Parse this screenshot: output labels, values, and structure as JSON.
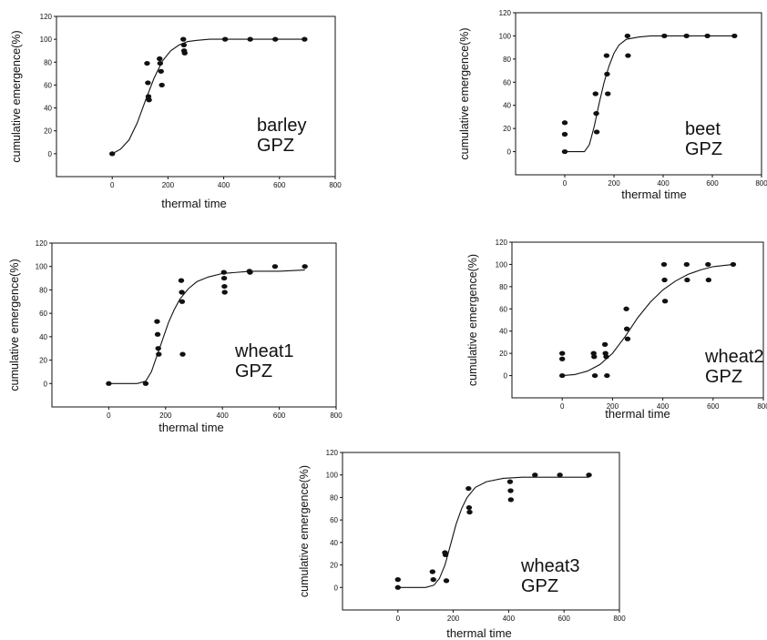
{
  "chart_data": [
    {
      "type": "scatter",
      "annotation": [
        "barley",
        "GPZ"
      ],
      "xlabel": "thermal time",
      "ylabel": "cumulative emergence(%)",
      "xlim": [
        -200,
        800
      ],
      "ylim": [
        -20,
        120
      ],
      "xticks": [
        "0",
        "200",
        "400",
        "600",
        "800"
      ],
      "yticks": [
        "0",
        "20",
        "40",
        "60",
        "80",
        "100",
        "120"
      ],
      "points": [
        [
          0,
          0
        ],
        [
          125,
          79
        ],
        [
          128,
          62
        ],
        [
          130,
          50
        ],
        [
          132,
          47
        ],
        [
          170,
          83
        ],
        [
          172,
          79
        ],
        [
          175,
          72
        ],
        [
          178,
          60
        ],
        [
          255,
          100
        ],
        [
          257,
          95
        ],
        [
          258,
          90
        ],
        [
          260,
          88
        ],
        [
          405,
          100
        ],
        [
          495,
          100
        ],
        [
          585,
          100
        ],
        [
          690,
          100
        ]
      ],
      "fitted_curve": [
        [
          0,
          0
        ],
        [
          30,
          4
        ],
        [
          60,
          12
        ],
        [
          90,
          27
        ],
        [
          120,
          47
        ],
        [
          150,
          66
        ],
        [
          180,
          81
        ],
        [
          210,
          90
        ],
        [
          240,
          95
        ],
        [
          270,
          98
        ],
        [
          300,
          99
        ],
        [
          350,
          100
        ],
        [
          400,
          100
        ],
        [
          500,
          100
        ],
        [
          600,
          100
        ],
        [
          690,
          100
        ]
      ]
    },
    {
      "type": "scatter",
      "annotation": [
        "beet",
        "GPZ"
      ],
      "xlabel": "thermal time",
      "ylabel": "cumulative emergence(%)",
      "xlim": [
        -200,
        800
      ],
      "ylim": [
        -20,
        120
      ],
      "xticks": [
        "0",
        "200",
        "400",
        "600",
        "800"
      ],
      "yticks": [
        "0",
        "20",
        "40",
        "60",
        "80",
        "100",
        "120"
      ],
      "points": [
        [
          0,
          25
        ],
        [
          0,
          15
        ],
        [
          0,
          0
        ],
        [
          125,
          50
        ],
        [
          128,
          33
        ],
        [
          130,
          17
        ],
        [
          170,
          83
        ],
        [
          172,
          67
        ],
        [
          175,
          50
        ],
        [
          255,
          100
        ],
        [
          257,
          83
        ],
        [
          405,
          100
        ],
        [
          495,
          100
        ],
        [
          580,
          100
        ],
        [
          690,
          100
        ]
      ],
      "fitted_curve": [
        [
          0,
          0
        ],
        [
          50,
          0
        ],
        [
          80,
          0
        ],
        [
          100,
          6
        ],
        [
          120,
          22
        ],
        [
          140,
          42
        ],
        [
          160,
          60
        ],
        [
          180,
          74
        ],
        [
          200,
          85
        ],
        [
          220,
          92
        ],
        [
          250,
          97
        ],
        [
          300,
          99
        ],
        [
          350,
          100
        ],
        [
          450,
          100
        ],
        [
          550,
          100
        ],
        [
          690,
          100
        ]
      ]
    },
    {
      "type": "scatter",
      "annotation": [
        "wheat1",
        "GPZ"
      ],
      "xlabel": "thermal time",
      "ylabel": "cumulative emergence(%)",
      "xlim": [
        -200,
        800
      ],
      "ylim": [
        -20,
        120
      ],
      "xticks": [
        "0",
        "200",
        "400",
        "600",
        "800"
      ],
      "yticks": [
        "0",
        "20",
        "40",
        "60",
        "80",
        "100",
        "120"
      ],
      "points": [
        [
          0,
          0
        ],
        [
          130,
          0
        ],
        [
          170,
          53
        ],
        [
          172,
          42
        ],
        [
          174,
          30
        ],
        [
          176,
          25
        ],
        [
          255,
          88
        ],
        [
          257,
          78
        ],
        [
          258,
          70
        ],
        [
          260,
          25
        ],
        [
          405,
          95
        ],
        [
          406,
          90
        ],
        [
          407,
          83
        ],
        [
          408,
          78
        ],
        [
          495,
          96
        ],
        [
          497,
          95
        ],
        [
          585,
          100
        ],
        [
          690,
          100
        ]
      ],
      "fitted_curve": [
        [
          0,
          0
        ],
        [
          100,
          0
        ],
        [
          130,
          2
        ],
        [
          150,
          10
        ],
        [
          170,
          24
        ],
        [
          190,
          38
        ],
        [
          210,
          52
        ],
        [
          230,
          63
        ],
        [
          250,
          72
        ],
        [
          280,
          81
        ],
        [
          310,
          87
        ],
        [
          350,
          91
        ],
        [
          400,
          94
        ],
        [
          500,
          96
        ],
        [
          600,
          96
        ],
        [
          690,
          97
        ]
      ]
    },
    {
      "type": "scatter",
      "annotation": [
        "wheat2",
        "GPZ"
      ],
      "xlabel": "thermal time",
      "ylabel": "cumulative emergence(%)",
      "xlim": [
        -200,
        800
      ],
      "ylim": [
        -20,
        120
      ],
      "xticks": [
        "0",
        "200",
        "400",
        "600",
        "800"
      ],
      "yticks": [
        "0",
        "20",
        "40",
        "60",
        "80",
        "100",
        "120"
      ],
      "points": [
        [
          0,
          20
        ],
        [
          0,
          15
        ],
        [
          0,
          0
        ],
        [
          125,
          20
        ],
        [
          127,
          17
        ],
        [
          130,
          0
        ],
        [
          170,
          28
        ],
        [
          172,
          20
        ],
        [
          175,
          17
        ],
        [
          178,
          0
        ],
        [
          255,
          60
        ],
        [
          257,
          42
        ],
        [
          260,
          33
        ],
        [
          405,
          100
        ],
        [
          407,
          86
        ],
        [
          409,
          67
        ],
        [
          495,
          100
        ],
        [
          497,
          86
        ],
        [
          580,
          100
        ],
        [
          582,
          86
        ],
        [
          680,
          100
        ]
      ],
      "fitted_curve": [
        [
          0,
          0
        ],
        [
          50,
          1
        ],
        [
          100,
          4
        ],
        [
          150,
          10
        ],
        [
          200,
          20
        ],
        [
          250,
          35
        ],
        [
          300,
          52
        ],
        [
          350,
          66
        ],
        [
          400,
          77
        ],
        [
          450,
          85
        ],
        [
          500,
          91
        ],
        [
          550,
          95
        ],
        [
          600,
          98
        ],
        [
          680,
          100
        ]
      ]
    },
    {
      "type": "scatter",
      "annotation": [
        "wheat3",
        "GPZ"
      ],
      "xlabel": "thermal time",
      "ylabel": "cumulative emergence(%)",
      "xlim": [
        -200,
        800
      ],
      "ylim": [
        -20,
        120
      ],
      "xticks": [
        "0",
        "200",
        "400",
        "600",
        "800"
      ],
      "yticks": [
        "0",
        "20",
        "40",
        "60",
        "80",
        "100",
        "120"
      ],
      "points": [
        [
          0,
          7
        ],
        [
          0,
          0
        ],
        [
          125,
          14
        ],
        [
          128,
          7
        ],
        [
          170,
          31
        ],
        [
          172,
          29
        ],
        [
          175,
          6
        ],
        [
          255,
          88
        ],
        [
          257,
          71
        ],
        [
          259,
          67
        ],
        [
          405,
          94
        ],
        [
          407,
          86
        ],
        [
          408,
          78
        ],
        [
          495,
          100
        ],
        [
          585,
          100
        ],
        [
          690,
          100
        ]
      ],
      "fitted_curve": [
        [
          0,
          0
        ],
        [
          100,
          0
        ],
        [
          130,
          2
        ],
        [
          150,
          8
        ],
        [
          170,
          20
        ],
        [
          190,
          38
        ],
        [
          210,
          56
        ],
        [
          230,
          70
        ],
        [
          250,
          80
        ],
        [
          280,
          89
        ],
        [
          320,
          94
        ],
        [
          380,
          97
        ],
        [
          450,
          98
        ],
        [
          550,
          98
        ],
        [
          690,
          98
        ]
      ]
    }
  ]
}
